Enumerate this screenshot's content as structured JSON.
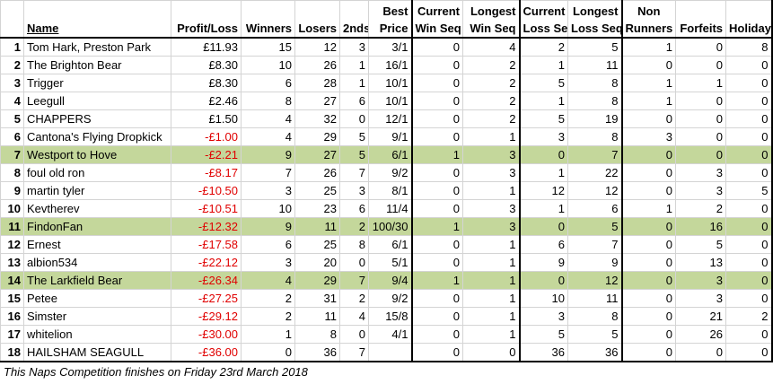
{
  "table": {
    "header": [
      [
        "Name"
      ],
      [
        "Profit/Loss"
      ],
      [
        "Winners"
      ],
      [
        "Losers"
      ],
      [
        "2nds"
      ],
      [
        "Best",
        "Price"
      ],
      [
        "Current",
        "Win Seq"
      ],
      [
        "Longest",
        "Win Seq"
      ],
      [
        "Current",
        "Loss Seq"
      ],
      [
        "Longest",
        "Loss Seq"
      ],
      [
        "Non",
        "Runners"
      ],
      [
        "Forfeits"
      ],
      [
        "Holiday"
      ]
    ],
    "rows": [
      [
        1,
        "Tom Hark, Preston Park",
        "£11.93",
        15,
        12,
        3,
        "3/1",
        0,
        4,
        2,
        5,
        1,
        0,
        8
      ],
      [
        2,
        "The Brighton Bear",
        "£8.30",
        10,
        26,
        1,
        "16/1",
        0,
        2,
        1,
        11,
        0,
        0,
        0
      ],
      [
        3,
        "Trigger",
        "£8.30",
        6,
        28,
        1,
        "10/1",
        0,
        2,
        5,
        8,
        1,
        1,
        0
      ],
      [
        4,
        "Leegull",
        "£2.46",
        8,
        27,
        6,
        "10/1",
        0,
        2,
        1,
        8,
        1,
        0,
        0
      ],
      [
        5,
        "CHAPPERS",
        "£1.50",
        4,
        32,
        0,
        "12/1",
        0,
        2,
        5,
        19,
        0,
        0,
        0
      ],
      [
        6,
        "Cantona's Flying Dropkick",
        "-£1.00",
        4,
        29,
        5,
        "9/1",
        0,
        1,
        3,
        8,
        3,
        0,
        0
      ],
      [
        7,
        "Westport to Hove",
        "-£2.21",
        9,
        27,
        5,
        "6/1",
        1,
        3,
        0,
        7,
        0,
        0,
        0
      ],
      [
        8,
        "foul old ron",
        "-£8.17",
        7,
        26,
        7,
        "9/2",
        0,
        3,
        1,
        22,
        0,
        3,
        0
      ],
      [
        9,
        "martin tyler",
        "-£10.50",
        3,
        25,
        3,
        "8/1",
        0,
        1,
        12,
        12,
        0,
        3,
        5
      ],
      [
        10,
        "Kevtherev",
        "-£10.51",
        10,
        23,
        6,
        "11/4",
        0,
        3,
        1,
        6,
        1,
        2,
        0
      ],
      [
        11,
        "FindonFan",
        "-£12.32",
        9,
        11,
        2,
        "100/30",
        1,
        3,
        0,
        5,
        0,
        16,
        0
      ],
      [
        12,
        "Ernest",
        "-£17.58",
        6,
        25,
        8,
        "6/1",
        0,
        1,
        6,
        7,
        0,
        5,
        0
      ],
      [
        13,
        "albion534",
        "-£22.12",
        3,
        20,
        0,
        "5/1",
        0,
        1,
        9,
        9,
        0,
        13,
        0
      ],
      [
        14,
        "The Larkfield Bear",
        "-£26.34",
        4,
        29,
        7,
        "9/4",
        1,
        1,
        0,
        12,
        0,
        3,
        0
      ],
      [
        15,
        "Petee",
        "-£27.25",
        2,
        31,
        2,
        "9/2",
        0,
        1,
        10,
        11,
        0,
        3,
        0
      ],
      [
        16,
        "Simster",
        "-£29.12",
        2,
        11,
        4,
        "15/8",
        0,
        1,
        3,
        8,
        0,
        21,
        2
      ],
      [
        17,
        "whitelion",
        "-£30.00",
        1,
        8,
        0,
        "4/1",
        0,
        1,
        5,
        5,
        0,
        26,
        0
      ],
      [
        18,
        "HAILSHAM SEAGULL",
        "-£36.00",
        0,
        36,
        7,
        null,
        0,
        0,
        36,
        36,
        0,
        0,
        0
      ]
    ]
  },
  "footer": "This Naps Competition finishes on Friday 23rd March 2018"
}
